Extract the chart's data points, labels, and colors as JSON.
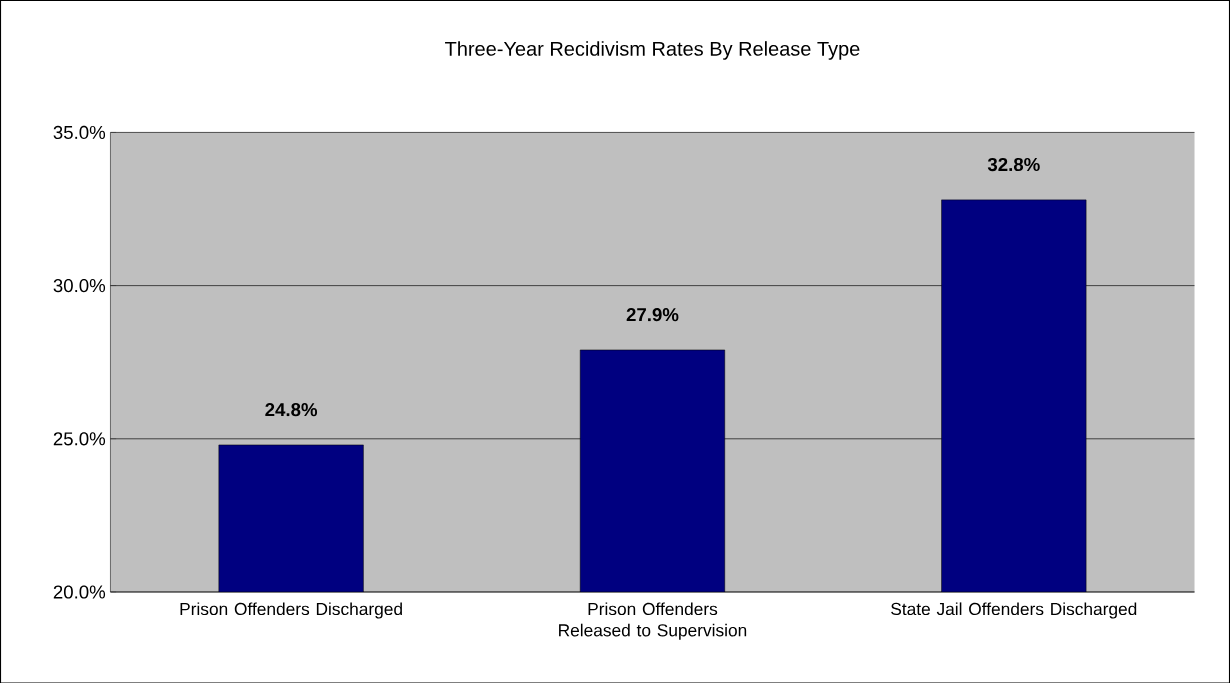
{
  "chart_data": {
    "type": "bar",
    "title": "Three-Year Recidivism Rates By Release Type",
    "categories": [
      "Prison Offenders Discharged",
      "Prison Offenders Released to Supervision",
      "State Jail Offenders Discharged"
    ],
    "values": [
      24.8,
      27.9,
      32.8
    ],
    "value_labels": [
      "24.8%",
      "27.9%",
      "32.8%"
    ],
    "color": "#000080",
    "ylim": [
      20,
      35
    ],
    "yticks": [
      {
        "value": 20,
        "label": "20.0%"
      },
      {
        "value": 25,
        "label": "25.0%"
      },
      {
        "value": 30,
        "label": "30.0%"
      },
      {
        "value": 35,
        "label": "35.0%"
      }
    ],
    "grid": "y"
  }
}
